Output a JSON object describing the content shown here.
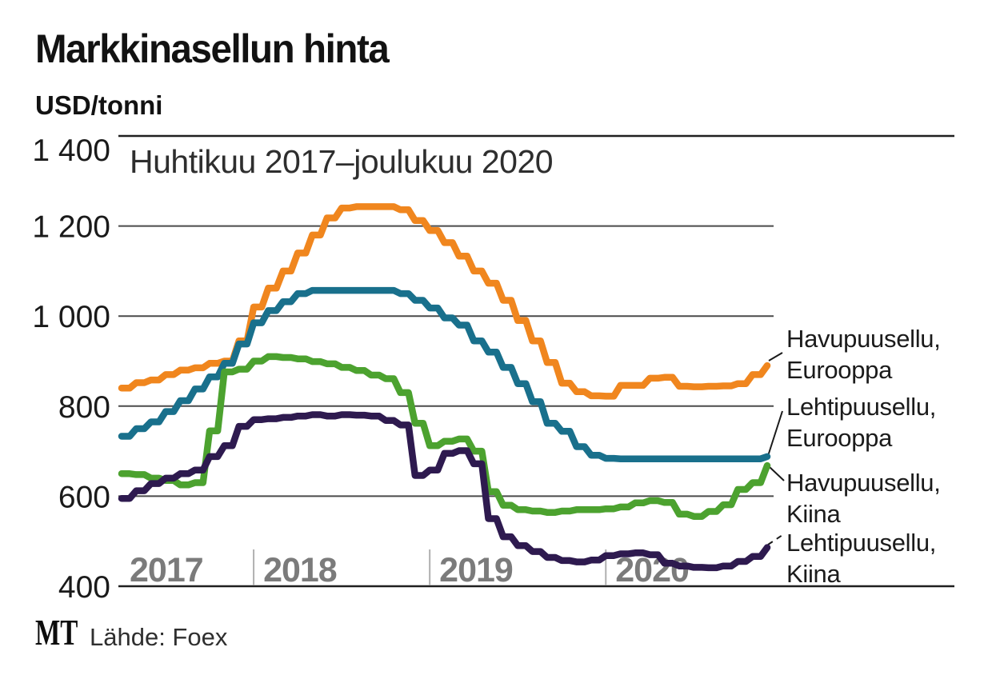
{
  "title": "Markkinasellun hinta",
  "unit_label": "USD/tonni",
  "subtitle": "Huhtikuu 2017–joulukuu 2020",
  "source": {
    "logo": "MT",
    "text": "Lähde: Foex"
  },
  "colors": {
    "background": "#ffffff",
    "title_text": "#121212",
    "axis_label_text": "#1a1a1a",
    "year_label_text": "#7b7b7b",
    "gridline": "#4a4a4a",
    "frame_line": "#1f1f1f",
    "year_tick": "#b0b0b0",
    "leader_line": "#1a1a1a",
    "havupuusellu_eurooppa": "#F0861E",
    "lehtipuusellu_eurooppa": "#19708C",
    "havupuusellu_kiina": "#4CA22F",
    "lehtipuusellu_kiina": "#2E1A4F"
  },
  "legend": {
    "entries": [
      {
        "line1": "Havupuusellu,",
        "line2": "Eurooppa"
      },
      {
        "line1": "Lehtipuusellu,",
        "line2": "Eurooppa"
      },
      {
        "line1": "Havupuusellu,",
        "line2": "Kiina"
      },
      {
        "line1": "Lehtipuusellu,",
        "line2": "Kiina"
      }
    ]
  },
  "chart_data": {
    "type": "line",
    "title": "Markkinasellun hinta",
    "subtitle": "Huhtikuu 2017–joulukuu 2020",
    "ylabel": "USD/tonni",
    "ylim": [
      400,
      1400
    ],
    "yticks": [
      400,
      600,
      800,
      1000,
      1200,
      1400
    ],
    "ytick_labels": [
      "400",
      "600",
      "800",
      "1 000",
      "1 200",
      "1 400"
    ],
    "grid": true,
    "legend_position": "right",
    "x_start": "2017-04",
    "x_end": "2020-12",
    "x_unit": "month",
    "year_labels": [
      "2017",
      "2018",
      "2019",
      "2020"
    ],
    "year_start_month_offsets": [
      9,
      21,
      33
    ],
    "series": [
      {
        "name": "Havupuusellu, Eurooppa",
        "slug": "havupuusellu-eurooppa",
        "color": "#F0861E",
        "values": [
          840,
          852,
          858,
          870,
          880,
          885,
          895,
          900,
          945,
          1020,
          1062,
          1100,
          1140,
          1180,
          1218,
          1240,
          1243,
          1243,
          1243,
          1236,
          1212,
          1190,
          1163,
          1133,
          1100,
          1073,
          1035,
          990,
          945,
          897,
          851,
          832,
          823,
          822,
          846,
          846,
          862,
          864,
          844,
          843,
          844,
          845,
          850,
          870,
          890
        ]
      },
      {
        "name": "Lehtipuusellu, Eurooppa",
        "slug": "lehtipuusellu-eurooppa",
        "color": "#19708C",
        "values": [
          733,
          750,
          765,
          788,
          812,
          838,
          865,
          895,
          938,
          985,
          1012,
          1032,
          1050,
          1057,
          1057,
          1057,
          1057,
          1057,
          1057,
          1050,
          1035,
          1018,
          996,
          980,
          945,
          920,
          886,
          850,
          810,
          762,
          744,
          710,
          691,
          684,
          683,
          683,
          683,
          683,
          683,
          683,
          683,
          683,
          683,
          683,
          688
        ]
      },
      {
        "name": "Havupuusellu, Kiina",
        "slug": "havupuusellu-kiina",
        "color": "#4CA22F",
        "values": [
          650,
          648,
          640,
          635,
          625,
          630,
          745,
          876,
          882,
          900,
          910,
          908,
          905,
          899,
          894,
          886,
          879,
          869,
          861,
          830,
          762,
          712,
          722,
          727,
          700,
          610,
          580,
          570,
          567,
          564,
          567,
          570,
          570,
          572,
          576,
          585,
          590,
          586,
          560,
          555,
          566,
          581,
          615,
          630,
          668
        ]
      },
      {
        "name": "Lehtipuusellu, Kiina",
        "slug": "lehtipuusellu-kiina",
        "color": "#2E1A4F",
        "values": [
          595,
          612,
          628,
          640,
          650,
          658,
          688,
          712,
          755,
          770,
          772,
          775,
          778,
          781,
          778,
          781,
          780,
          778,
          768,
          758,
          646,
          658,
          695,
          701,
          672,
          550,
          510,
          490,
          477,
          464,
          457,
          454,
          458,
          468,
          472,
          474,
          470,
          451,
          445,
          442,
          441,
          445,
          455,
          466,
          486
        ]
      }
    ]
  }
}
